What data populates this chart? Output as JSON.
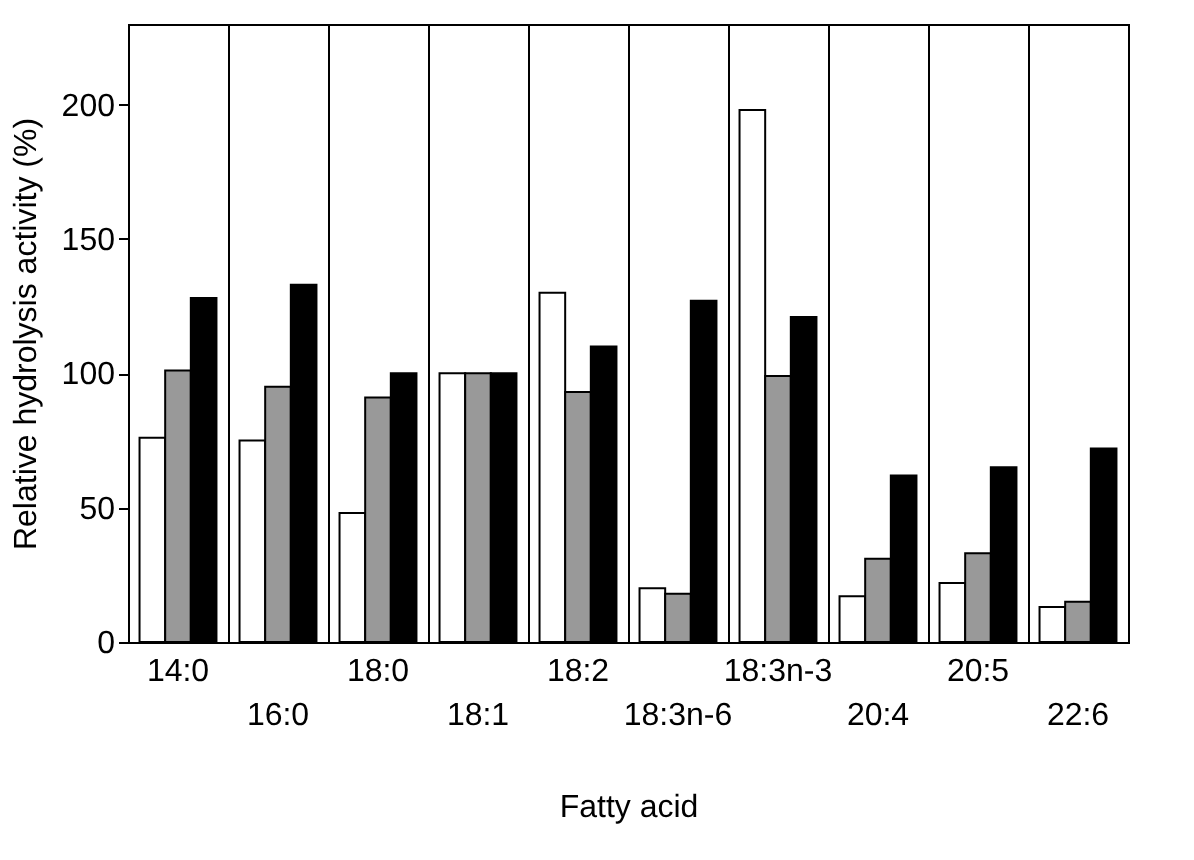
{
  "chart_data": {
    "type": "bar",
    "xlabel": "Fatty acid",
    "ylabel": "Relative hydrolysis activity (%)",
    "categories": [
      "14:0",
      "16:0",
      "18:0",
      "18:1",
      "18:2",
      "18:3n-6",
      "18:3n-3",
      "20:4",
      "20:5",
      "22:6"
    ],
    "series": [
      {
        "color": "#ffffff",
        "values": [
          76,
          75,
          48,
          100,
          130,
          20,
          198,
          17,
          22,
          13
        ]
      },
      {
        "color": "#999999",
        "values": [
          101,
          95,
          91,
          100,
          93,
          18,
          99,
          31,
          33,
          15
        ]
      },
      {
        "color": "#000000",
        "values": [
          128,
          133,
          100,
          100,
          110,
          127,
          121,
          62,
          65,
          72
        ]
      }
    ],
    "ylim": [
      0,
      230
    ],
    "yticks": [
      0,
      50,
      100,
      150,
      200
    ],
    "grid": "x",
    "legend": false
  }
}
